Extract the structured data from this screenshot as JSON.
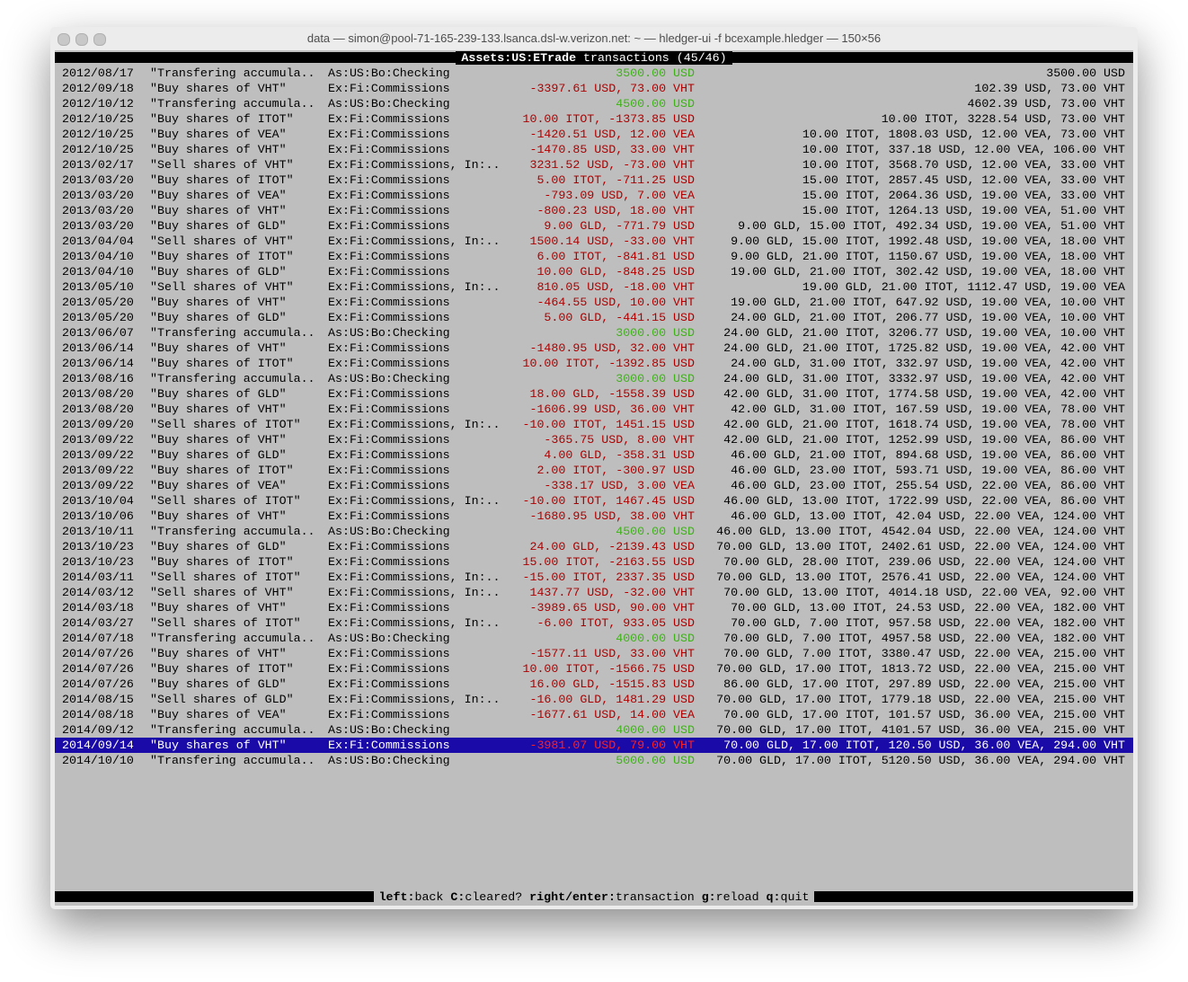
{
  "window_title": "data — simon@pool-71-165-239-133.lsanca.dsl-w.verizon.net: ~ — hledger-ui -f bcexample.hledger — 150×56",
  "header": {
    "account": "Assets:US:ETrade",
    "info": "transactions (45/46)"
  },
  "selected": 44,
  "rows": [
    [
      "2012/08/17",
      "\"Transfering accumula..",
      "As:US:Bo:Checking",
      "3500.00 USD",
      "3500.00 USD"
    ],
    [
      "2012/09/18",
      "\"Buy shares of VHT\"",
      "Ex:Fi:Commissions",
      "-3397.61 USD, 73.00 VHT",
      "102.39 USD, 73.00 VHT"
    ],
    [
      "2012/10/12",
      "\"Transfering accumula..",
      "As:US:Bo:Checking",
      "4500.00 USD",
      "4602.39 USD, 73.00 VHT"
    ],
    [
      "2012/10/25",
      "\"Buy shares of ITOT\"",
      "Ex:Fi:Commissions",
      "10.00 ITOT, -1373.85 USD",
      "10.00 ITOT, 3228.54 USD, 73.00 VHT"
    ],
    [
      "2012/10/25",
      "\"Buy shares of VEA\"",
      "Ex:Fi:Commissions",
      "-1420.51 USD, 12.00 VEA",
      "10.00 ITOT, 1808.03 USD, 12.00 VEA, 73.00 VHT"
    ],
    [
      "2012/10/25",
      "\"Buy shares of VHT\"",
      "Ex:Fi:Commissions",
      "-1470.85 USD, 33.00 VHT",
      "10.00 ITOT, 337.18 USD, 12.00 VEA, 106.00 VHT"
    ],
    [
      "2013/02/17",
      "\"Sell shares of VHT\"",
      "Ex:Fi:Commissions, In:..",
      "3231.52 USD, -73.00 VHT",
      "10.00 ITOT, 3568.70 USD, 12.00 VEA, 33.00 VHT"
    ],
    [
      "2013/03/20",
      "\"Buy shares of ITOT\"",
      "Ex:Fi:Commissions",
      "5.00 ITOT, -711.25 USD",
      "15.00 ITOT, 2857.45 USD, 12.00 VEA, 33.00 VHT"
    ],
    [
      "2013/03/20",
      "\"Buy shares of VEA\"",
      "Ex:Fi:Commissions",
      "-793.09 USD, 7.00 VEA",
      "15.00 ITOT, 2064.36 USD, 19.00 VEA, 33.00 VHT"
    ],
    [
      "2013/03/20",
      "\"Buy shares of VHT\"",
      "Ex:Fi:Commissions",
      "-800.23 USD, 18.00 VHT",
      "15.00 ITOT, 1264.13 USD, 19.00 VEA, 51.00 VHT"
    ],
    [
      "2013/03/20",
      "\"Buy shares of GLD\"",
      "Ex:Fi:Commissions",
      "9.00 GLD, -771.79 USD",
      "9.00 GLD, 15.00 ITOT, 492.34 USD, 19.00 VEA, 51.00 VHT"
    ],
    [
      "2013/04/04",
      "\"Sell shares of VHT\"",
      "Ex:Fi:Commissions, In:..",
      "1500.14 USD, -33.00 VHT",
      "9.00 GLD, 15.00 ITOT, 1992.48 USD, 19.00 VEA, 18.00 VHT"
    ],
    [
      "2013/04/10",
      "\"Buy shares of ITOT\"",
      "Ex:Fi:Commissions",
      "6.00 ITOT, -841.81 USD",
      "9.00 GLD, 21.00 ITOT, 1150.67 USD, 19.00 VEA, 18.00 VHT"
    ],
    [
      "2013/04/10",
      "\"Buy shares of GLD\"",
      "Ex:Fi:Commissions",
      "10.00 GLD, -848.25 USD",
      "19.00 GLD, 21.00 ITOT, 302.42 USD, 19.00 VEA, 18.00 VHT"
    ],
    [
      "2013/05/10",
      "\"Sell shares of VHT\"",
      "Ex:Fi:Commissions, In:..",
      "810.05 USD, -18.00 VHT",
      "19.00 GLD, 21.00 ITOT, 1112.47 USD, 19.00 VEA"
    ],
    [
      "2013/05/20",
      "\"Buy shares of VHT\"",
      "Ex:Fi:Commissions",
      "-464.55 USD, 10.00 VHT",
      "19.00 GLD, 21.00 ITOT, 647.92 USD, 19.00 VEA, 10.00 VHT"
    ],
    [
      "2013/05/20",
      "\"Buy shares of GLD\"",
      "Ex:Fi:Commissions",
      "5.00 GLD, -441.15 USD",
      "24.00 GLD, 21.00 ITOT, 206.77 USD, 19.00 VEA, 10.00 VHT"
    ],
    [
      "2013/06/07",
      "\"Transfering accumula..",
      "As:US:Bo:Checking",
      "3000.00 USD",
      "24.00 GLD, 21.00 ITOT, 3206.77 USD, 19.00 VEA, 10.00 VHT"
    ],
    [
      "2013/06/14",
      "\"Buy shares of VHT\"",
      "Ex:Fi:Commissions",
      "-1480.95 USD, 32.00 VHT",
      "24.00 GLD, 21.00 ITOT, 1725.82 USD, 19.00 VEA, 42.00 VHT"
    ],
    [
      "2013/06/14",
      "\"Buy shares of ITOT\"",
      "Ex:Fi:Commissions",
      "10.00 ITOT, -1392.85 USD",
      "24.00 GLD, 31.00 ITOT, 332.97 USD, 19.00 VEA, 42.00 VHT"
    ],
    [
      "2013/08/16",
      "\"Transfering accumula..",
      "As:US:Bo:Checking",
      "3000.00 USD",
      "24.00 GLD, 31.00 ITOT, 3332.97 USD, 19.00 VEA, 42.00 VHT"
    ],
    [
      "2013/08/20",
      "\"Buy shares of GLD\"",
      "Ex:Fi:Commissions",
      "18.00 GLD, -1558.39 USD",
      "42.00 GLD, 31.00 ITOT, 1774.58 USD, 19.00 VEA, 42.00 VHT"
    ],
    [
      "2013/08/20",
      "\"Buy shares of VHT\"",
      "Ex:Fi:Commissions",
      "-1606.99 USD, 36.00 VHT",
      "42.00 GLD, 31.00 ITOT, 167.59 USD, 19.00 VEA, 78.00 VHT"
    ],
    [
      "2013/09/20",
      "\"Sell shares of ITOT\"",
      "Ex:Fi:Commissions, In:..",
      "-10.00 ITOT, 1451.15 USD",
      "42.00 GLD, 21.00 ITOT, 1618.74 USD, 19.00 VEA, 78.00 VHT"
    ],
    [
      "2013/09/22",
      "\"Buy shares of VHT\"",
      "Ex:Fi:Commissions",
      "-365.75 USD, 8.00 VHT",
      "42.00 GLD, 21.00 ITOT, 1252.99 USD, 19.00 VEA, 86.00 VHT"
    ],
    [
      "2013/09/22",
      "\"Buy shares of GLD\"",
      "Ex:Fi:Commissions",
      "4.00 GLD, -358.31 USD",
      "46.00 GLD, 21.00 ITOT, 894.68 USD, 19.00 VEA, 86.00 VHT"
    ],
    [
      "2013/09/22",
      "\"Buy shares of ITOT\"",
      "Ex:Fi:Commissions",
      "2.00 ITOT, -300.97 USD",
      "46.00 GLD, 23.00 ITOT, 593.71 USD, 19.00 VEA, 86.00 VHT"
    ],
    [
      "2013/09/22",
      "\"Buy shares of VEA\"",
      "Ex:Fi:Commissions",
      "-338.17 USD, 3.00 VEA",
      "46.00 GLD, 23.00 ITOT, 255.54 USD, 22.00 VEA, 86.00 VHT"
    ],
    [
      "2013/10/04",
      "\"Sell shares of ITOT\"",
      "Ex:Fi:Commissions, In:..",
      "-10.00 ITOT, 1467.45 USD",
      "46.00 GLD, 13.00 ITOT, 1722.99 USD, 22.00 VEA, 86.00 VHT"
    ],
    [
      "2013/10/06",
      "\"Buy shares of VHT\"",
      "Ex:Fi:Commissions",
      "-1680.95 USD, 38.00 VHT",
      "46.00 GLD, 13.00 ITOT, 42.04 USD, 22.00 VEA, 124.00 VHT"
    ],
    [
      "2013/10/11",
      "\"Transfering accumula..",
      "As:US:Bo:Checking",
      "4500.00 USD",
      "46.00 GLD, 13.00 ITOT, 4542.04 USD, 22.00 VEA, 124.00 VHT"
    ],
    [
      "2013/10/23",
      "\"Buy shares of GLD\"",
      "Ex:Fi:Commissions",
      "24.00 GLD, -2139.43 USD",
      "70.00 GLD, 13.00 ITOT, 2402.61 USD, 22.00 VEA, 124.00 VHT"
    ],
    [
      "2013/10/23",
      "\"Buy shares of ITOT\"",
      "Ex:Fi:Commissions",
      "15.00 ITOT, -2163.55 USD",
      "70.00 GLD, 28.00 ITOT, 239.06 USD, 22.00 VEA, 124.00 VHT"
    ],
    [
      "2014/03/11",
      "\"Sell shares of ITOT\"",
      "Ex:Fi:Commissions, In:..",
      "-15.00 ITOT, 2337.35 USD",
      "70.00 GLD, 13.00 ITOT, 2576.41 USD, 22.00 VEA, 124.00 VHT"
    ],
    [
      "2014/03/12",
      "\"Sell shares of VHT\"",
      "Ex:Fi:Commissions, In:..",
      "1437.77 USD, -32.00 VHT",
      "70.00 GLD, 13.00 ITOT, 4014.18 USD, 22.00 VEA, 92.00 VHT"
    ],
    [
      "2014/03/18",
      "\"Buy shares of VHT\"",
      "Ex:Fi:Commissions",
      "-3989.65 USD, 90.00 VHT",
      "70.00 GLD, 13.00 ITOT, 24.53 USD, 22.00 VEA, 182.00 VHT"
    ],
    [
      "2014/03/27",
      "\"Sell shares of ITOT\"",
      "Ex:Fi:Commissions, In:..",
      "-6.00 ITOT, 933.05 USD",
      "70.00 GLD, 7.00 ITOT, 957.58 USD, 22.00 VEA, 182.00 VHT"
    ],
    [
      "2014/07/18",
      "\"Transfering accumula..",
      "As:US:Bo:Checking",
      "4000.00 USD",
      "70.00 GLD, 7.00 ITOT, 4957.58 USD, 22.00 VEA, 182.00 VHT"
    ],
    [
      "2014/07/26",
      "\"Buy shares of VHT\"",
      "Ex:Fi:Commissions",
      "-1577.11 USD, 33.00 VHT",
      "70.00 GLD, 7.00 ITOT, 3380.47 USD, 22.00 VEA, 215.00 VHT"
    ],
    [
      "2014/07/26",
      "\"Buy shares of ITOT\"",
      "Ex:Fi:Commissions",
      "10.00 ITOT, -1566.75 USD",
      "70.00 GLD, 17.00 ITOT, 1813.72 USD, 22.00 VEA, 215.00 VHT"
    ],
    [
      "2014/07/26",
      "\"Buy shares of GLD\"",
      "Ex:Fi:Commissions",
      "16.00 GLD, -1515.83 USD",
      "86.00 GLD, 17.00 ITOT, 297.89 USD, 22.00 VEA, 215.00 VHT"
    ],
    [
      "2014/08/15",
      "\"Sell shares of GLD\"",
      "Ex:Fi:Commissions, In:..",
      "-16.00 GLD, 1481.29 USD",
      "70.00 GLD, 17.00 ITOT, 1779.18 USD, 22.00 VEA, 215.00 VHT"
    ],
    [
      "2014/08/18",
      "\"Buy shares of VEA\"",
      "Ex:Fi:Commissions",
      "-1677.61 USD, 14.00 VEA",
      "70.00 GLD, 17.00 ITOT, 101.57 USD, 36.00 VEA, 215.00 VHT"
    ],
    [
      "2014/09/12",
      "\"Transfering accumula..",
      "As:US:Bo:Checking",
      "4000.00 USD",
      "70.00 GLD, 17.00 ITOT, 4101.57 USD, 36.00 VEA, 215.00 VHT"
    ],
    [
      "2014/09/14",
      "\"Buy shares of VHT\"",
      "Ex:Fi:Commissions",
      "-3981.07 USD, 79.00 VHT",
      "70.00 GLD, 17.00 ITOT, 120.50 USD, 36.00 VEA, 294.00 VHT"
    ],
    [
      "2014/10/10",
      "\"Transfering accumula..",
      "As:US:Bo:Checking",
      "5000.00 USD",
      "70.00 GLD, 17.00 ITOT, 5120.50 USD, 36.00 VEA, 294.00 VHT"
    ]
  ],
  "footer": [
    [
      "left:",
      "back"
    ],
    [
      "C:",
      "cleared?"
    ],
    [
      "right/enter:",
      "transaction"
    ],
    [
      "g:",
      "reload"
    ],
    [
      "q:",
      "quit"
    ]
  ]
}
